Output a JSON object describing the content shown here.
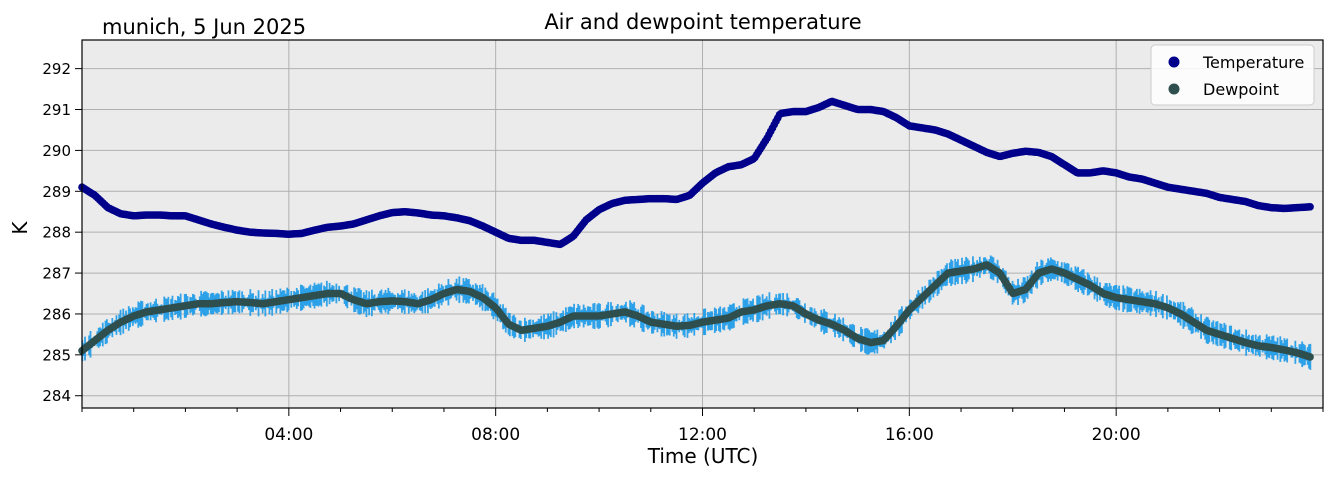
{
  "chart_data": {
    "type": "scatter",
    "title": "Air and dewpoint temperature",
    "subtitle": "munich, 5 Jun 2025",
    "xlabel": "Time (UTC)",
    "ylabel": "K",
    "x_unit": "hours UTC",
    "xlim": [
      0,
      24
    ],
    "ylim": [
      283.7,
      292.7
    ],
    "x_ticks": [
      {
        "value": 4,
        "label": "04:00"
      },
      {
        "value": 8,
        "label": "08:00"
      },
      {
        "value": 12,
        "label": "12:00"
      },
      {
        "value": 16,
        "label": "16:00"
      },
      {
        "value": 20,
        "label": "20:00"
      }
    ],
    "y_ticks": [
      {
        "value": 284,
        "label": "284"
      },
      {
        "value": 285,
        "label": "285"
      },
      {
        "value": 286,
        "label": "286"
      },
      {
        "value": 287,
        "label": "287"
      },
      {
        "value": 288,
        "label": "288"
      },
      {
        "value": 289,
        "label": "289"
      },
      {
        "value": 290,
        "label": "290"
      },
      {
        "value": 291,
        "label": "291"
      },
      {
        "value": 292,
        "label": "292"
      }
    ],
    "grid": true,
    "legend_position": "top-right",
    "background_color": "#ebebeb",
    "series": [
      {
        "name": "Temperature",
        "color": "#00008b",
        "raw_color": "#6fa8a8",
        "x": [
          0.0,
          0.25,
          0.5,
          0.75,
          1.0,
          1.25,
          1.5,
          1.75,
          2.0,
          2.25,
          2.5,
          2.75,
          3.0,
          3.25,
          3.5,
          3.75,
          4.0,
          4.25,
          4.5,
          4.75,
          5.0,
          5.25,
          5.5,
          5.75,
          6.0,
          6.25,
          6.5,
          6.75,
          7.0,
          7.25,
          7.5,
          7.75,
          8.0,
          8.25,
          8.5,
          8.75,
          9.0,
          9.25,
          9.5,
          9.75,
          10.0,
          10.25,
          10.5,
          10.75,
          11.0,
          11.25,
          11.5,
          11.75,
          12.0,
          12.25,
          12.5,
          12.75,
          13.0,
          13.25,
          13.5,
          13.75,
          14.0,
          14.25,
          14.5,
          14.75,
          15.0,
          15.25,
          15.5,
          15.75,
          16.0,
          16.25,
          16.5,
          16.75,
          17.0,
          17.25,
          17.5,
          17.75,
          18.0,
          18.25,
          18.5,
          18.75,
          19.0,
          19.25,
          19.5,
          19.75,
          20.0,
          20.25,
          20.5,
          20.75,
          21.0,
          21.25,
          21.5,
          21.75,
          22.0,
          22.25,
          22.5,
          22.75,
          23.0,
          23.25,
          23.5,
          23.75
        ],
        "values": [
          289.1,
          288.9,
          288.6,
          288.45,
          288.4,
          288.42,
          288.42,
          288.4,
          288.4,
          288.3,
          288.2,
          288.12,
          288.05,
          288.0,
          287.98,
          287.97,
          287.95,
          287.97,
          288.05,
          288.12,
          288.15,
          288.2,
          288.3,
          288.4,
          288.48,
          288.5,
          288.47,
          288.42,
          288.4,
          288.35,
          288.28,
          288.15,
          288.0,
          287.85,
          287.8,
          287.8,
          287.75,
          287.7,
          287.9,
          288.3,
          288.55,
          288.7,
          288.78,
          288.8,
          288.82,
          288.82,
          288.8,
          288.9,
          289.2,
          289.45,
          289.6,
          289.65,
          289.8,
          290.3,
          290.9,
          290.95,
          290.95,
          291.05,
          291.2,
          291.1,
          291.0,
          291.0,
          290.95,
          290.8,
          290.6,
          290.55,
          290.5,
          290.4,
          290.25,
          290.1,
          289.95,
          289.85,
          289.93,
          289.98,
          289.95,
          289.85,
          289.65,
          289.45,
          289.45,
          289.5,
          289.45,
          289.35,
          289.3,
          289.2,
          289.1,
          289.05,
          289.0,
          288.95,
          288.85,
          288.8,
          288.75,
          288.65,
          288.6,
          288.58,
          288.6,
          288.62
        ]
      },
      {
        "name": "Dewpoint",
        "color": "#2f4f4f",
        "raw_color": "#1e9be8",
        "x": [
          0.0,
          0.25,
          0.5,
          0.75,
          1.0,
          1.25,
          1.5,
          1.75,
          2.0,
          2.25,
          2.5,
          2.75,
          3.0,
          3.25,
          3.5,
          3.75,
          4.0,
          4.25,
          4.5,
          4.75,
          5.0,
          5.25,
          5.5,
          5.75,
          6.0,
          6.25,
          6.5,
          6.75,
          7.0,
          7.25,
          7.5,
          7.75,
          8.0,
          8.25,
          8.5,
          8.75,
          9.0,
          9.25,
          9.5,
          9.75,
          10.0,
          10.25,
          10.5,
          10.75,
          11.0,
          11.25,
          11.5,
          11.75,
          12.0,
          12.25,
          12.5,
          12.75,
          13.0,
          13.25,
          13.5,
          13.75,
          14.0,
          14.25,
          14.5,
          14.75,
          15.0,
          15.25,
          15.5,
          15.75,
          16.0,
          16.25,
          16.5,
          16.75,
          17.0,
          17.25,
          17.5,
          17.75,
          18.0,
          18.25,
          18.5,
          18.75,
          19.0,
          19.25,
          19.5,
          19.75,
          20.0,
          20.25,
          20.5,
          20.75,
          21.0,
          21.25,
          21.5,
          21.75,
          22.0,
          22.25,
          22.5,
          22.75,
          23.0,
          23.25,
          23.5,
          23.75
        ],
        "values": [
          285.1,
          285.35,
          285.6,
          285.8,
          285.95,
          286.05,
          286.1,
          286.15,
          286.2,
          286.25,
          286.25,
          286.28,
          286.3,
          286.28,
          286.25,
          286.3,
          286.35,
          286.4,
          286.45,
          286.5,
          286.5,
          286.35,
          286.25,
          286.3,
          286.32,
          286.3,
          286.25,
          286.35,
          286.5,
          286.6,
          286.55,
          286.4,
          286.15,
          285.75,
          285.6,
          285.65,
          285.7,
          285.8,
          285.95,
          285.95,
          285.95,
          286.0,
          286.05,
          285.95,
          285.8,
          285.75,
          285.7,
          285.72,
          285.8,
          285.85,
          285.9,
          286.05,
          286.1,
          286.2,
          286.25,
          286.2,
          286.0,
          285.85,
          285.75,
          285.6,
          285.4,
          285.3,
          285.35,
          285.7,
          286.1,
          286.4,
          286.7,
          287.0,
          287.05,
          287.1,
          287.2,
          287.0,
          286.5,
          286.6,
          287.0,
          287.1,
          287.0,
          286.85,
          286.7,
          286.5,
          286.4,
          286.35,
          286.3,
          286.25,
          286.15,
          286.0,
          285.8,
          285.6,
          285.5,
          285.4,
          285.3,
          285.22,
          285.18,
          285.12,
          285.05,
          284.95
        ]
      }
    ]
  }
}
